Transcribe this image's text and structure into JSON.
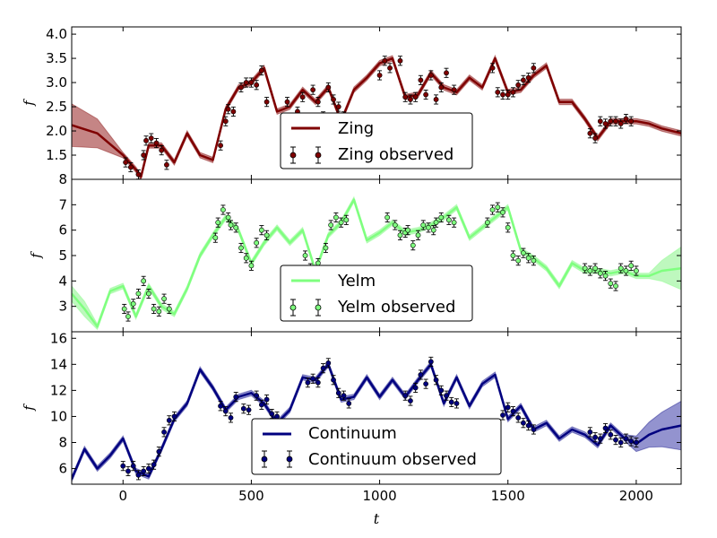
{
  "chart_data": {
    "type": "line",
    "xlabel": "t",
    "x_ticks": [
      "0",
      "500",
      "1000",
      "1500",
      "2000"
    ],
    "x_tick_values": [
      0,
      500,
      1000,
      1500,
      2000
    ],
    "xlim": [
      -200,
      2175
    ],
    "panels": [
      {
        "name": "Zing",
        "ylabel": "f",
        "ylim": [
          1.0,
          4.15
        ],
        "y_ticks": [
          "1.5",
          "2.0",
          "2.5",
          "3.0",
          "3.5",
          "4.0"
        ],
        "y_tick_values": [
          1.5,
          2.0,
          2.5,
          3.0,
          3.5,
          4.0
        ],
        "color": "#7f0000",
        "fill_color": "#b15c5c",
        "legend": [
          "Zing",
          "Zing observed"
        ],
        "series": [
          {
            "name": "Zing",
            "x": [
              -200,
              -100,
              0,
              50,
              70,
              100,
              150,
              200,
              250,
              300,
              350,
              400,
              450,
              500,
              550,
              600,
              650,
              700,
              750,
              800,
              850,
              900,
              950,
              1000,
              1050,
              1100,
              1150,
              1200,
              1250,
              1300,
              1350,
              1400,
              1450,
              1500,
              1550,
              1600,
              1650,
              1700,
              1750,
              1800,
              1850,
              1900,
              1950,
              2000,
              2050,
              2100,
              2175
            ],
            "y": [
              2.12,
              1.95,
              1.5,
              1.2,
              1.05,
              1.7,
              1.7,
              1.35,
              1.95,
              1.5,
              1.4,
              2.45,
              2.9,
              3.0,
              3.3,
              2.4,
              2.5,
              2.85,
              2.6,
              2.9,
              2.2,
              2.85,
              3.1,
              3.4,
              3.5,
              2.7,
              2.75,
              3.2,
              2.9,
              2.8,
              3.1,
              2.9,
              3.5,
              2.8,
              2.85,
              3.15,
              3.35,
              2.6,
              2.6,
              2.25,
              1.85,
              2.2,
              2.2,
              2.2,
              2.15,
              2.05,
              1.95
            ]
          }
        ],
        "observed": {
          "x": [
            10,
            30,
            60,
            80,
            90,
            110,
            130,
            150,
            170,
            380,
            400,
            410,
            430,
            460,
            480,
            500,
            520,
            540,
            560,
            640,
            680,
            700,
            740,
            760,
            780,
            800,
            820,
            840,
            860,
            880,
            1000,
            1020,
            1040,
            1080,
            1100,
            1120,
            1140,
            1160,
            1180,
            1200,
            1220,
            1240,
            1260,
            1290,
            1440,
            1460,
            1480,
            1500,
            1520,
            1540,
            1560,
            1580,
            1600,
            1820,
            1840,
            1860,
            1880,
            1900,
            1920,
            1940,
            1960,
            1980
          ],
          "y": [
            1.35,
            1.25,
            1.1,
            1.5,
            1.8,
            1.85,
            1.75,
            1.6,
            1.3,
            1.7,
            2.2,
            2.45,
            2.4,
            2.9,
            3.0,
            3.0,
            2.95,
            3.25,
            2.6,
            2.6,
            2.4,
            2.7,
            2.85,
            2.6,
            2.3,
            2.9,
            2.65,
            2.5,
            2.3,
            2.1,
            3.15,
            3.45,
            3.3,
            3.45,
            2.7,
            2.65,
            2.7,
            3.05,
            2.75,
            3.15,
            2.65,
            2.9,
            3.2,
            2.85,
            3.3,
            2.8,
            2.75,
            2.75,
            2.8,
            2.95,
            3.05,
            3.1,
            3.3,
            1.95,
            1.85,
            2.2,
            2.15,
            2.2,
            2.2,
            2.15,
            2.25,
            2.2
          ]
        }
      },
      {
        "name": "Yelm",
        "ylabel": "f",
        "ylim": [
          2.0,
          8.0
        ],
        "y_ticks": [
          "3",
          "4",
          "5",
          "6",
          "7",
          "8"
        ],
        "y_tick_values": [
          3,
          4,
          5,
          6,
          7,
          8
        ],
        "color": "#7fff7f",
        "fill_color": "#a8f5a8",
        "legend": [
          "Yelm",
          "Yelm observed"
        ],
        "series": [
          {
            "name": "Yelm",
            "x": [
              -200,
              -150,
              -100,
              -50,
              0,
              50,
              100,
              150,
              200,
              250,
              300,
              350,
              400,
              450,
              500,
              550,
              600,
              650,
              700,
              750,
              800,
              850,
              900,
              950,
              1000,
              1050,
              1100,
              1150,
              1200,
              1250,
              1300,
              1350,
              1400,
              1450,
              1500,
              1550,
              1600,
              1650,
              1700,
              1750,
              1800,
              1850,
              1900,
              1950,
              2000,
              2050,
              2100,
              2175
            ],
            "y": [
              3.5,
              2.9,
              2.2,
              3.6,
              3.8,
              2.6,
              3.8,
              3.0,
              2.7,
              3.7,
              5.0,
              5.8,
              6.5,
              6.0,
              4.7,
              5.5,
              6.1,
              5.5,
              6.0,
              4.4,
              5.8,
              6.3,
              7.2,
              5.6,
              5.9,
              6.3,
              5.9,
              6.0,
              6.2,
              6.5,
              6.9,
              5.7,
              6.1,
              6.5,
              6.9,
              5.2,
              4.9,
              4.5,
              3.8,
              4.7,
              4.4,
              4.4,
              4.3,
              4.4,
              4.2,
              4.2,
              4.4,
              4.5
            ]
          }
        ],
        "observed": {
          "x": [
            5,
            20,
            40,
            60,
            80,
            100,
            120,
            140,
            160,
            180,
            360,
            370,
            390,
            410,
            420,
            440,
            460,
            480,
            500,
            520,
            540,
            560,
            710,
            730,
            760,
            790,
            810,
            830,
            850,
            870,
            1030,
            1060,
            1080,
            1100,
            1110,
            1130,
            1150,
            1170,
            1190,
            1210,
            1220,
            1240,
            1270,
            1290,
            1420,
            1440,
            1460,
            1480,
            1500,
            1520,
            1540,
            1560,
            1580,
            1600,
            1800,
            1820,
            1840,
            1860,
            1880,
            1900,
            1920,
            1940,
            1960,
            1980,
            2000
          ],
          "y": [
            2.9,
            2.6,
            3.1,
            3.5,
            4.0,
            3.5,
            2.9,
            2.8,
            3.3,
            2.9,
            5.7,
            6.3,
            6.8,
            6.5,
            6.2,
            6.1,
            5.3,
            4.9,
            4.6,
            5.5,
            6.0,
            5.8,
            5.0,
            4.5,
            4.7,
            5.3,
            6.2,
            6.5,
            6.3,
            6.4,
            6.5,
            6.2,
            5.8,
            5.9,
            6.0,
            5.4,
            5.8,
            6.2,
            6.1,
            6.0,
            6.3,
            6.5,
            6.4,
            6.3,
            6.3,
            6.8,
            6.9,
            6.7,
            6.1,
            5.0,
            4.8,
            5.1,
            4.9,
            4.8,
            4.5,
            4.4,
            4.5,
            4.3,
            4.2,
            3.9,
            3.8,
            4.5,
            4.4,
            4.6,
            4.4
          ]
        }
      },
      {
        "name": "Continuum",
        "ylabel": "f",
        "ylim": [
          4.8,
          16.5
        ],
        "y_ticks": [
          "6",
          "8",
          "10",
          "12",
          "14",
          "16"
        ],
        "y_tick_values": [
          6,
          8,
          10,
          12,
          14,
          16
        ],
        "color": "#00007f",
        "fill_color": "#6f6fbf",
        "legend": [
          "Continuum",
          "Continuum observed"
        ],
        "series": [
          {
            "name": "Continuum",
            "x": [
              -200,
              -150,
              -100,
              -50,
              0,
              50,
              100,
              150,
              200,
              250,
              300,
              350,
              400,
              450,
              500,
              550,
              600,
              650,
              700,
              750,
              800,
              850,
              900,
              950,
              1000,
              1050,
              1100,
              1150,
              1200,
              1250,
              1300,
              1350,
              1400,
              1450,
              1500,
              1550,
              1600,
              1650,
              1700,
              1750,
              1800,
              1850,
              1900,
              1950,
              2000,
              2050,
              2100,
              2175
            ],
            "y": [
              5.2,
              7.5,
              6.0,
              7.0,
              8.3,
              5.8,
              5.4,
              7.5,
              9.8,
              11.0,
              13.6,
              12.2,
              10.5,
              11.5,
              11.8,
              11.0,
              9.5,
              10.5,
              13.0,
              12.8,
              14.0,
              11.3,
              11.5,
              13.0,
              11.5,
              12.8,
              11.5,
              12.8,
              14.0,
              11.0,
              13.0,
              10.8,
              12.5,
              13.2,
              9.8,
              10.8,
              9.0,
              9.5,
              8.3,
              9.0,
              8.6,
              7.8,
              9.3,
              8.4,
              7.9,
              8.6,
              9.0,
              9.3
            ]
          }
        ],
        "observed": {
          "x": [
            0,
            20,
            40,
            60,
            80,
            100,
            120,
            140,
            160,
            180,
            200,
            380,
            400,
            420,
            440,
            470,
            490,
            520,
            540,
            560,
            580,
            600,
            720,
            740,
            760,
            780,
            800,
            820,
            840,
            860,
            880,
            1100,
            1120,
            1140,
            1160,
            1180,
            1200,
            1220,
            1240,
            1260,
            1280,
            1300,
            1480,
            1500,
            1520,
            1540,
            1560,
            1580,
            1600,
            1820,
            1840,
            1860,
            1880,
            1900,
            1920,
            1940,
            1960,
            1980,
            2000
          ],
          "y": [
            6.2,
            5.8,
            6.2,
            5.5,
            5.8,
            6.0,
            6.3,
            7.3,
            8.8,
            9.7,
            10.0,
            10.8,
            10.4,
            9.9,
            11.5,
            10.6,
            10.5,
            11.6,
            10.9,
            11.3,
            10.2,
            10.0,
            12.6,
            12.9,
            12.6,
            13.7,
            14.1,
            12.8,
            11.8,
            11.6,
            11.0,
            11.6,
            11.2,
            12.2,
            13.2,
            12.5,
            14.2,
            12.8,
            12.0,
            11.6,
            11.1,
            11.0,
            10.1,
            10.7,
            10.4,
            9.9,
            9.5,
            9.3,
            9.0,
            8.8,
            8.4,
            8.3,
            9.1,
            8.6,
            8.2,
            8.0,
            8.3,
            8.1,
            8.0
          ]
        }
      }
    ]
  }
}
